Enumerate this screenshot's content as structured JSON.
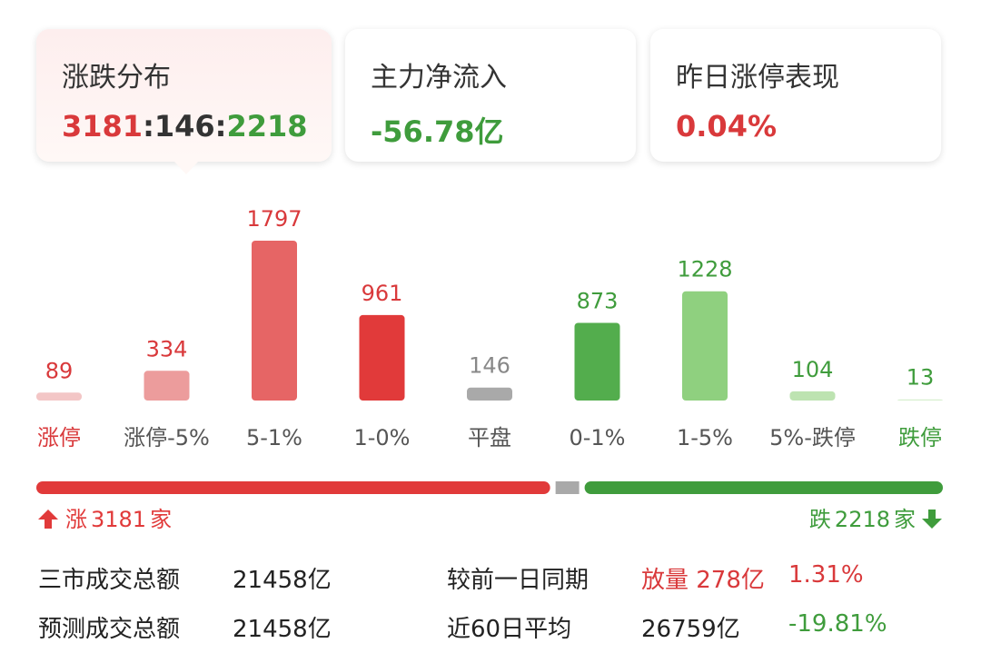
{
  "cards": [
    {
      "title": "涨跌分布",
      "parts": [
        {
          "text": "3181",
          "color": "#d9393b"
        },
        {
          "text": ":",
          "color": "#333333"
        },
        {
          "text": "146",
          "color": "#333333"
        },
        {
          "text": ":",
          "color": "#333333"
        },
        {
          "text": "2218",
          "color": "#3f9c3c"
        }
      ]
    },
    {
      "title": "主力净流入",
      "parts": [
        {
          "text": "-56.78亿",
          "color": "#3f9c3c"
        }
      ]
    },
    {
      "title": "昨日涨停表现",
      "parts": [
        {
          "text": "0.04%",
          "color": "#d9393b"
        }
      ]
    }
  ],
  "chart_data": {
    "type": "bar",
    "categories": [
      "涨停",
      "涨停-5%",
      "5-1%",
      "1-0%",
      "平盘",
      "0-1%",
      "1-5%",
      "5%-跌停",
      "跌停"
    ],
    "values": [
      89,
      334,
      1797,
      961,
      146,
      873,
      1228,
      104,
      13
    ],
    "colors": [
      "#f3c6c6",
      "#ec9c9c",
      "#e66565",
      "#e13a3a",
      "#a9a9a9",
      "#53ad4d",
      "#8fd07f",
      "#bde3b1",
      "#d7efcf"
    ],
    "value_colors": [
      "#d9393b",
      "#d9393b",
      "#d9393b",
      "#d9393b",
      "#888888",
      "#3f9c3c",
      "#3f9c3c",
      "#3f9c3c",
      "#3f9c3c"
    ],
    "category_colors": [
      "#d9393b",
      "#555555",
      "#555555",
      "#555555",
      "#555555",
      "#555555",
      "#555555",
      "#555555",
      "#3f9c3c"
    ]
  },
  "breadth_bar": {
    "up_prefix": "涨",
    "up": 3181,
    "flat": 146,
    "down_prefix": "跌",
    "down": 2218,
    "unit": "家",
    "up_color": "#e13a3a",
    "flat_color": "#a9a9a9",
    "down_color": "#3f9c3c"
  },
  "summary": [
    [
      {
        "text": "三市成交总额",
        "color": "#222222"
      },
      {
        "text": "21458亿",
        "color": "#222222"
      },
      {
        "text": "较前一日同期",
        "color": "#222222"
      },
      {
        "text": "放量 278亿",
        "color": "#d9393b"
      },
      {
        "text": "1.31%",
        "color": "#d9393b"
      }
    ],
    [
      {
        "text": "预测成交总额",
        "color": "#222222"
      },
      {
        "text": "21458亿",
        "color": "#222222"
      },
      {
        "text": "近60日平均",
        "color": "#222222"
      },
      {
        "text": "26759亿",
        "color": "#222222"
      },
      {
        "text": "-19.81%",
        "color": "#3f9c3c"
      }
    ]
  ]
}
